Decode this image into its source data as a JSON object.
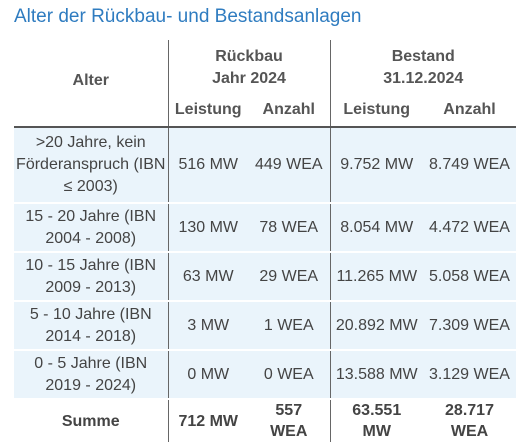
{
  "title": "Alter der Rückbau- und Bestandsanlagen",
  "header": {
    "alter": "Alter",
    "rueckbau_line1": "Rückbau",
    "rueckbau_line2": "Jahr 2024",
    "bestand_line1": "Bestand",
    "bestand_line2": "31.12.2024",
    "leistung": "Leistung",
    "anzahl": "Anzahl"
  },
  "rows": [
    {
      "alter": ">20 Jahre, kein Förderanspruch (IBN ≤ 2003)",
      "rb_leistung": "516 MW",
      "rb_anzahl": "449 WEA",
      "be_leistung": "9.752 MW",
      "be_anzahl": "8.749 WEA"
    },
    {
      "alter": "15 - 20 Jahre (IBN 2004 - 2008)",
      "rb_leistung": "130 MW",
      "rb_anzahl": "78 WEA",
      "be_leistung": "8.054 MW",
      "be_anzahl": "4.472 WEA"
    },
    {
      "alter": "10 - 15 Jahre (IBN 2009 - 2013)",
      "rb_leistung": "63 MW",
      "rb_anzahl": "29 WEA",
      "be_leistung": "11.265 MW",
      "be_anzahl": "5.058 WEA"
    },
    {
      "alter": "5 - 10 Jahre (IBN 2014 - 2018)",
      "rb_leistung": "3 MW",
      "rb_anzahl": "1 WEA",
      "be_leistung": "20.892 MW",
      "be_anzahl": "7.309 WEA"
    },
    {
      "alter": "0 - 5 Jahre (IBN 2019 - 2024)",
      "rb_leistung": "0 MW",
      "rb_anzahl": "0 WEA",
      "be_leistung": "13.588 MW",
      "be_anzahl": "3.129 WEA"
    }
  ],
  "summe": {
    "label": "Summe",
    "rb_leistung": "712 MW",
    "rb_anzahl": "557 WEA",
    "be_leistung": "63.551 MW",
    "be_anzahl": "28.717 WEA"
  }
}
